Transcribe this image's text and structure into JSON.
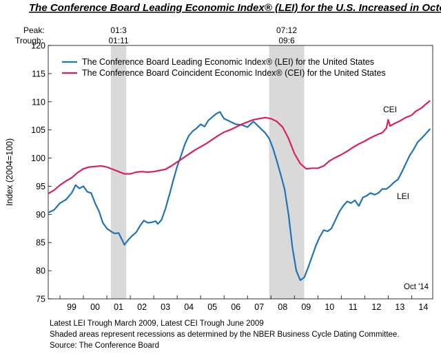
{
  "chart_data": {
    "type": "line",
    "title": "The Conference Board Leading Economic Index® (LEI) for the U.S. Increased in October",
    "ylabel": "Index (2004=100)",
    "ylim": [
      75,
      120
    ],
    "yticks": [
      75,
      80,
      85,
      90,
      95,
      100,
      105,
      110,
      115,
      120
    ],
    "xlim": [
      1998.5,
      2014.9
    ],
    "xtick_labels": [
      "99",
      "00",
      "01",
      "02",
      "03",
      "04",
      "05",
      "06",
      "07",
      "08",
      "09",
      "10",
      "11",
      "12",
      "13",
      "14"
    ],
    "xtick_years": [
      1999,
      2000,
      2001,
      2002,
      2003,
      2004,
      2005,
      2006,
      2007,
      2008,
      2009,
      2010,
      2011,
      2012,
      2013,
      2014
    ],
    "grid": false,
    "legend_position": "top-left",
    "peak_label": "Peak:",
    "trough_label": "Trough:",
    "recessions": [
      {
        "peak": "01:3",
        "trough": "01:11",
        "start": 2001.17,
        "end": 2001.83
      },
      {
        "peak": "07:12",
        "trough": "09:6",
        "start": 2007.92,
        "end": 2009.42
      }
    ],
    "series": [
      {
        "name": "The Conference Board Leading Economic Index® (LEI) for the United States",
        "label": "LEI",
        "color": "#1f73b7",
        "points": [
          [
            1998.5,
            90.3
          ],
          [
            1998.75,
            90.8
          ],
          [
            1999.0,
            92.0
          ],
          [
            1999.25,
            92.6
          ],
          [
            1999.5,
            93.8
          ],
          [
            1999.67,
            95.2
          ],
          [
            1999.83,
            94.6
          ],
          [
            2000.0,
            95.0
          ],
          [
            2000.17,
            94.0
          ],
          [
            2000.33,
            93.8
          ],
          [
            2000.5,
            92.0
          ],
          [
            2000.67,
            90.5
          ],
          [
            2000.83,
            88.5
          ],
          [
            2001.0,
            87.5
          ],
          [
            2001.17,
            87.0
          ],
          [
            2001.33,
            86.6
          ],
          [
            2001.5,
            86.7
          ],
          [
            2001.67,
            85.3
          ],
          [
            2001.75,
            84.6
          ],
          [
            2001.92,
            85.5
          ],
          [
            2002.08,
            86.2
          ],
          [
            2002.25,
            86.8
          ],
          [
            2002.42,
            88.0
          ],
          [
            2002.58,
            88.9
          ],
          [
            2002.75,
            88.5
          ],
          [
            2002.92,
            88.6
          ],
          [
            2003.08,
            88.8
          ],
          [
            2003.17,
            88.3
          ],
          [
            2003.33,
            89.0
          ],
          [
            2003.5,
            91.0
          ],
          [
            2003.67,
            93.5
          ],
          [
            2003.83,
            96.0
          ],
          [
            2004.0,
            98.5
          ],
          [
            2004.17,
            100.5
          ],
          [
            2004.33,
            102.5
          ],
          [
            2004.5,
            104.0
          ],
          [
            2004.67,
            104.8
          ],
          [
            2004.83,
            105.3
          ],
          [
            2005.0,
            106.0
          ],
          [
            2005.17,
            105.6
          ],
          [
            2005.33,
            106.7
          ],
          [
            2005.5,
            107.3
          ],
          [
            2005.67,
            107.9
          ],
          [
            2005.83,
            108.2
          ],
          [
            2005.92,
            107.5
          ],
          [
            2006.0,
            107.0
          ],
          [
            2006.25,
            106.5
          ],
          [
            2006.5,
            106.0
          ],
          [
            2006.75,
            105.9
          ],
          [
            2007.0,
            105.5
          ],
          [
            2007.25,
            106.5
          ],
          [
            2007.5,
            105.5
          ],
          [
            2007.75,
            104.5
          ],
          [
            2007.92,
            103.5
          ],
          [
            2008.08,
            101.8
          ],
          [
            2008.25,
            99.5
          ],
          [
            2008.42,
            97.0
          ],
          [
            2008.58,
            94.5
          ],
          [
            2008.75,
            90.0
          ],
          [
            2008.92,
            84.0
          ],
          [
            2009.08,
            80.0
          ],
          [
            2009.25,
            78.3
          ],
          [
            2009.42,
            78.8
          ],
          [
            2009.58,
            80.5
          ],
          [
            2009.75,
            82.5
          ],
          [
            2009.92,
            84.5
          ],
          [
            2010.08,
            86.0
          ],
          [
            2010.25,
            87.2
          ],
          [
            2010.42,
            87.0
          ],
          [
            2010.58,
            87.5
          ],
          [
            2010.75,
            89.0
          ],
          [
            2010.92,
            90.5
          ],
          [
            2011.08,
            91.5
          ],
          [
            2011.25,
            92.3
          ],
          [
            2011.42,
            92.0
          ],
          [
            2011.58,
            92.5
          ],
          [
            2011.75,
            91.5
          ],
          [
            2011.92,
            93.0
          ],
          [
            2012.08,
            93.3
          ],
          [
            2012.25,
            93.8
          ],
          [
            2012.42,
            93.5
          ],
          [
            2012.58,
            93.8
          ],
          [
            2012.75,
            94.5
          ],
          [
            2012.92,
            94.5
          ],
          [
            2013.08,
            95.0
          ],
          [
            2013.25,
            95.7
          ],
          [
            2013.42,
            96.2
          ],
          [
            2013.58,
            97.5
          ],
          [
            2013.75,
            99.0
          ],
          [
            2013.92,
            100.5
          ],
          [
            2014.08,
            101.5
          ],
          [
            2014.25,
            102.8
          ],
          [
            2014.42,
            103.5
          ],
          [
            2014.58,
            104.2
          ],
          [
            2014.79,
            105.2
          ]
        ]
      },
      {
        "name": "The Conference Board Coincident Economic Index® (CEI) for the United States",
        "label": "CEI",
        "color": "#d9205d",
        "points": [
          [
            1998.5,
            93.7
          ],
          [
            1998.75,
            94.3
          ],
          [
            1999.0,
            95.2
          ],
          [
            1999.25,
            95.9
          ],
          [
            1999.5,
            96.5
          ],
          [
            1999.75,
            97.4
          ],
          [
            2000.0,
            98.1
          ],
          [
            2000.25,
            98.4
          ],
          [
            2000.5,
            98.5
          ],
          [
            2000.75,
            98.6
          ],
          [
            2001.0,
            98.4
          ],
          [
            2001.25,
            98.0
          ],
          [
            2001.5,
            97.6
          ],
          [
            2001.75,
            97.2
          ],
          [
            2002.0,
            97.2
          ],
          [
            2002.25,
            97.5
          ],
          [
            2002.5,
            97.6
          ],
          [
            2002.75,
            97.5
          ],
          [
            2003.0,
            97.6
          ],
          [
            2003.25,
            97.8
          ],
          [
            2003.5,
            98.0
          ],
          [
            2003.75,
            98.6
          ],
          [
            2004.0,
            99.3
          ],
          [
            2004.25,
            100.0
          ],
          [
            2004.5,
            100.7
          ],
          [
            2004.75,
            101.4
          ],
          [
            2005.0,
            102.0
          ],
          [
            2005.25,
            102.6
          ],
          [
            2005.5,
            103.3
          ],
          [
            2005.75,
            104.0
          ],
          [
            2006.0,
            104.6
          ],
          [
            2006.25,
            105.0
          ],
          [
            2006.5,
            105.5
          ],
          [
            2006.75,
            106.0
          ],
          [
            2007.0,
            106.4
          ],
          [
            2007.25,
            106.8
          ],
          [
            2007.5,
            107.0
          ],
          [
            2007.75,
            107.2
          ],
          [
            2008.0,
            107.0
          ],
          [
            2008.25,
            106.5
          ],
          [
            2008.5,
            105.5
          ],
          [
            2008.75,
            103.5
          ],
          [
            2009.0,
            100.8
          ],
          [
            2009.25,
            99.0
          ],
          [
            2009.5,
            98.1
          ],
          [
            2009.75,
            98.2
          ],
          [
            2010.0,
            98.2
          ],
          [
            2010.25,
            98.6
          ],
          [
            2010.5,
            99.5
          ],
          [
            2010.75,
            100.1
          ],
          [
            2011.0,
            100.6
          ],
          [
            2011.25,
            101.2
          ],
          [
            2011.5,
            101.9
          ],
          [
            2011.75,
            102.5
          ],
          [
            2012.0,
            103.0
          ],
          [
            2012.25,
            103.6
          ],
          [
            2012.5,
            104.1
          ],
          [
            2012.75,
            104.5
          ],
          [
            2012.92,
            105.3
          ],
          [
            2013.0,
            106.8
          ],
          [
            2013.08,
            105.7
          ],
          [
            2013.25,
            106.1
          ],
          [
            2013.5,
            106.6
          ],
          [
            2013.75,
            107.2
          ],
          [
            2014.0,
            107.6
          ],
          [
            2014.17,
            108.3
          ],
          [
            2014.42,
            108.9
          ],
          [
            2014.58,
            109.5
          ],
          [
            2014.79,
            110.2
          ]
        ]
      }
    ],
    "annotation": "Oct '14"
  },
  "footnotes": [
    "Latest LEI Trough March 2009, Latest CEI Trough June 2009",
    "Shaded areas represent recessions as determined by the NBER Business Cycle Dating Committee.",
    "Source: The Conference Board"
  ]
}
